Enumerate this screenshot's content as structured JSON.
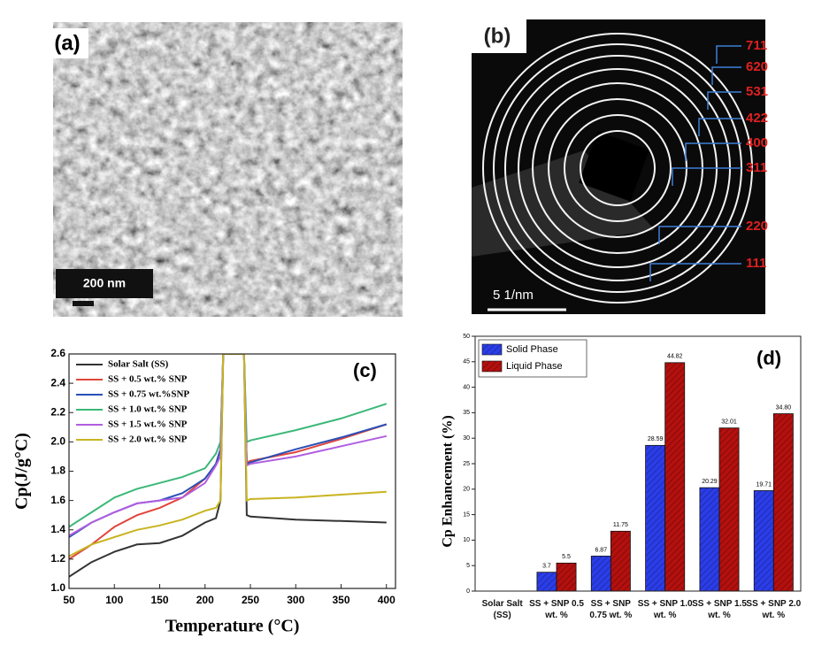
{
  "images": [
    {
      "panel_label": "(a)",
      "scale_bar": "200 nm"
    },
    {
      "panel_label": "(b)",
      "scale_bar": "5 1/nm",
      "ring_labels": [
        "711",
        "620",
        "531",
        "422",
        "400",
        "311",
        "220",
        "111"
      ]
    }
  ],
  "chart_data": [
    {
      "type": "line",
      "panel_label": "(c)",
      "x_label": "Temperature (°C)",
      "y_label": "Cp(J/g°C)",
      "x": [
        50,
        75,
        100,
        125,
        150,
        175,
        200,
        212,
        217,
        220,
        243,
        246,
        250,
        300,
        350,
        400
      ],
      "series": [
        {
          "name": "Solar Salt (SS)",
          "color": "#333333",
          "values": [
            1.08,
            1.18,
            1.25,
            1.3,
            1.31,
            1.36,
            1.45,
            1.48,
            1.6,
            2.6,
            2.6,
            1.5,
            1.49,
            1.47,
            1.46,
            1.45
          ]
        },
        {
          "name": "SS + 0.5 wt.% SNP",
          "color": "#e0463c",
          "values": [
            1.2,
            1.3,
            1.42,
            1.5,
            1.55,
            1.62,
            1.75,
            1.85,
            1.95,
            2.6,
            2.6,
            1.86,
            1.87,
            1.93,
            2.02,
            2.12
          ]
        },
        {
          "name": "SS + 0.75 wt.%SNP",
          "color": "#2a4fb8",
          "values": [
            1.35,
            1.45,
            1.52,
            1.58,
            1.6,
            1.65,
            1.75,
            1.85,
            1.95,
            2.6,
            2.6,
            1.85,
            1.86,
            1.95,
            2.03,
            2.12
          ]
        },
        {
          "name": "SS + 1.0 wt.% SNP",
          "color": "#3cb878",
          "values": [
            1.42,
            1.52,
            1.62,
            1.68,
            1.72,
            1.76,
            1.82,
            1.92,
            2.0,
            2.6,
            2.6,
            2.0,
            2.01,
            2.08,
            2.16,
            2.26
          ]
        },
        {
          "name": "SS + 1.5 wt.% SNP",
          "color": "#b05ee0",
          "values": [
            1.36,
            1.45,
            1.52,
            1.58,
            1.6,
            1.62,
            1.72,
            1.84,
            1.9,
            2.6,
            2.6,
            1.84,
            1.85,
            1.9,
            1.97,
            2.04
          ]
        },
        {
          "name": "SS + 2.0  wt.% SNP",
          "color": "#c8b420",
          "values": [
            1.22,
            1.3,
            1.35,
            1.4,
            1.43,
            1.47,
            1.53,
            1.55,
            1.6,
            2.6,
            2.6,
            1.6,
            1.61,
            1.62,
            1.64,
            1.66
          ]
        }
      ],
      "xlim": [
        50,
        410
      ],
      "xticks": [
        50,
        100,
        150,
        200,
        250,
        300,
        350,
        400
      ],
      "ylim": [
        1.0,
        2.6
      ],
      "yticks": [
        {
          "value": 1.0,
          "label": "1.0"
        },
        1.2,
        1.4,
        1.6,
        1.8,
        {
          "value": 2.0,
          "label": "2.0"
        },
        2.2,
        2.4,
        2.6
      ],
      "legend": "upper-left"
    },
    {
      "type": "bar",
      "panel_label": "(d)",
      "y_label": "Cp Enhancement (%)",
      "categories": [
        "Solar Salt (SS)",
        "SS + SNP 0.5 wt. %",
        "SS + SNP 0.75 wt. %",
        "SS + SNP 1.0 wt. %",
        "SS + SNP 1.5 wt. %",
        "SS + SNP 2.0 wt. %"
      ],
      "series": [
        {
          "name": "Solid Phase",
          "color": "#2b3de8",
          "values": [
            null,
            3.7,
            6.87,
            28.59,
            20.29,
            19.71
          ]
        },
        {
          "name": "Liquid Phase",
          "color": "#b3100e",
          "values": [
            null,
            5.5,
            11.75,
            44.82,
            32.01,
            34.8
          ],
          "value_labels": [
            null,
            "5.5",
            "11.75",
            "44.82",
            "32.01",
            "34.80"
          ]
        }
      ],
      "ylim": [
        0,
        50
      ],
      "yticks": [
        0,
        5,
        10,
        15,
        20,
        25,
        30,
        35,
        40,
        45,
        50
      ],
      "legend": "upper-left"
    }
  ]
}
